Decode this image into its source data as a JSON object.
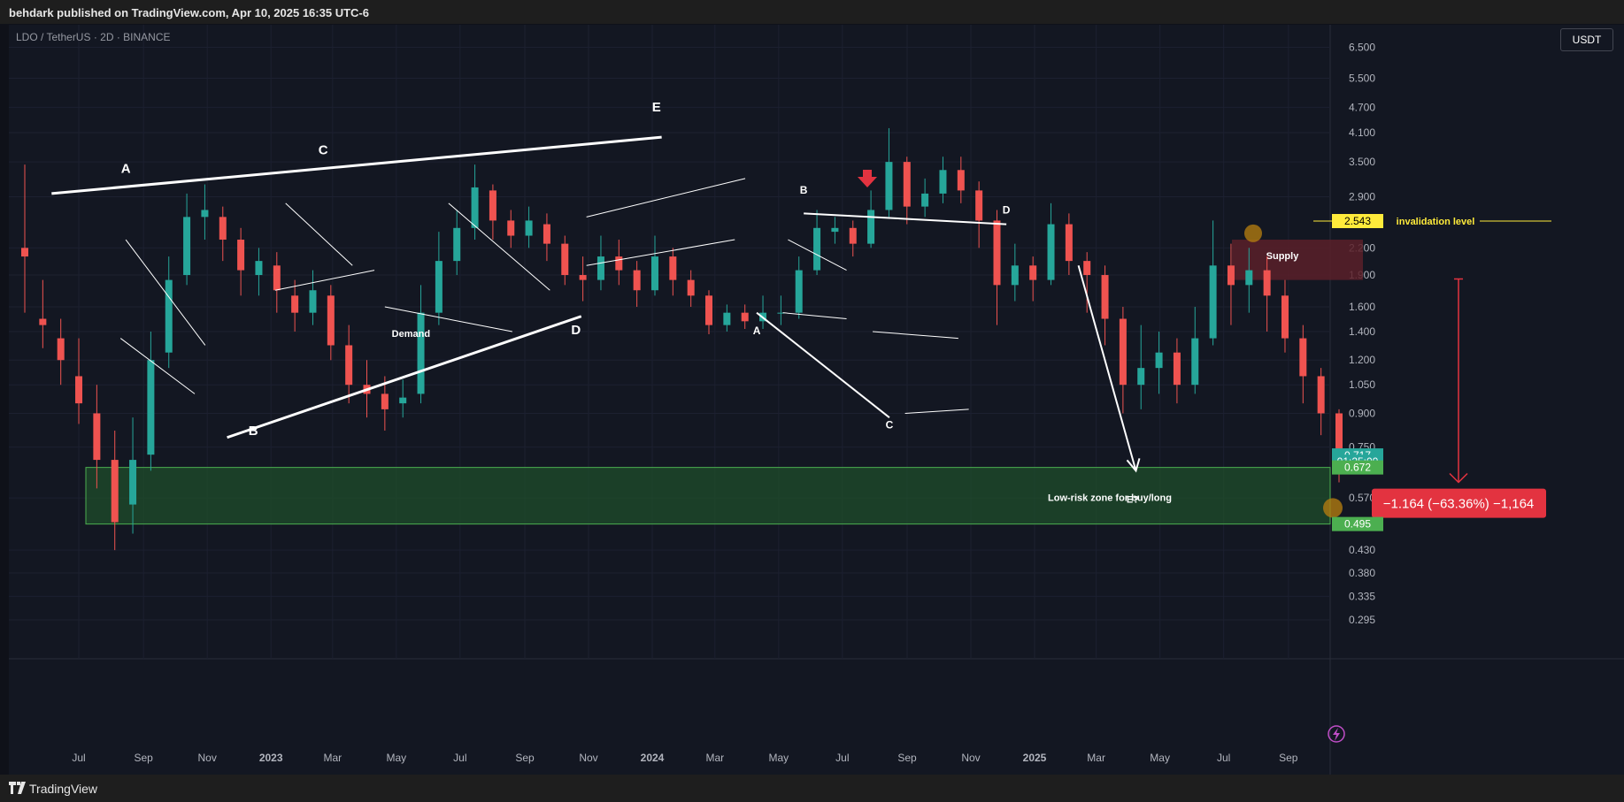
{
  "header": {
    "publish_text": "behdark published on TradingView.com, Apr 10, 2025 16:35 UTC-6"
  },
  "symbol": {
    "title": "LDO / TetherUS · 2D · BINANCE",
    "currency_button": "USDT"
  },
  "footer": {
    "brand": "TradingView"
  },
  "colors": {
    "background": "#131722",
    "up": "#26a69a",
    "down": "#ef5350",
    "zone": "#1f4d2b",
    "supply": "#5a2029",
    "label_red": "#e33340",
    "label_green": "#4caf50",
    "label_yellow": "#ffeb3b"
  },
  "chart_data": {
    "type": "candlestick",
    "title": "LDO / TetherUS · 2D · BINANCE",
    "y_axis_scale": "log",
    "y_ticks": [
      "6.500",
      "5.500",
      "4.700",
      "4.100",
      "3.500",
      "2.900",
      "2.200",
      "1.900",
      "1.600",
      "1.400",
      "1.200",
      "1.050",
      "0.900",
      "0.750",
      "0.570",
      "0.430",
      "0.380",
      "0.335",
      "0.295"
    ],
    "x_ticks": [
      "Jul",
      "Sep",
      "Nov",
      "2023",
      "Mar",
      "May",
      "Jul",
      "Sep",
      "Nov",
      "2024",
      "Mar",
      "May",
      "Jul",
      "Sep",
      "Nov",
      "2025",
      "Mar",
      "May",
      "Jul",
      "Sep"
    ],
    "price_labels": [
      {
        "text": "2.543",
        "value": 2.543,
        "color": "#ffeb3b",
        "text_color": "#000000"
      },
      {
        "text": "0.717",
        "value": 0.717,
        "color": "#26a69a",
        "text_color": "#ffffff"
      },
      {
        "text": "01:25:00",
        "value": 0.693,
        "color": "#26a69a",
        "text_color": "#ffffff"
      },
      {
        "text": "0.672",
        "value": 0.672,
        "color": "#4caf50",
        "text_color": "#ffffff"
      },
      {
        "text": "0.495",
        "value": 0.495,
        "color": "#4caf50",
        "text_color": "#ffffff"
      }
    ],
    "invalidation_level": {
      "label": "invalidation level",
      "value": 2.543
    },
    "zone": {
      "label": "Low-risk zone for buy/long",
      "top": 0.672,
      "bottom": 0.495
    },
    "supply": {
      "label": "Supply",
      "top": 2.3,
      "bottom": 1.85
    },
    "measure": {
      "label": "−1.164 (−63.36%) −1,164"
    },
    "wave_labels": [
      {
        "text": "A",
        "date": "2022-08-15",
        "value": 3.3
      },
      {
        "text": "B",
        "date": "2022-12-15",
        "value": 0.8
      },
      {
        "text": "C",
        "date": "2023-02-20",
        "value": 3.65
      },
      {
        "text": "D",
        "date": "2023-10-20",
        "value": 1.38
      },
      {
        "text": "E",
        "date": "2024-01-05",
        "value": 4.6
      },
      {
        "text": "A",
        "date": "2024-04-10",
        "value": 1.38
      },
      {
        "text": "B",
        "date": "2024-05-25",
        "value": 2.95
      },
      {
        "text": "C",
        "date": "2024-08-15",
        "value": 0.83
      },
      {
        "text": "D",
        "date": "2024-12-05",
        "value": 2.65
      },
      {
        "text": "E?",
        "date": "2025-04-05",
        "value": 0.555
      },
      {
        "text": "Demand",
        "date": "2023-05-15",
        "value": 1.36
      }
    ],
    "series": [
      {
        "name": "LDO/USDT",
        "ohlc": [
          [
            2.2,
            2.1,
            3.45,
            1.55
          ],
          [
            1.5,
            1.45,
            1.85,
            1.28
          ],
          [
            1.35,
            1.2,
            1.5,
            1.05
          ],
          [
            1.1,
            0.95,
            1.35,
            0.85
          ],
          [
            0.9,
            0.7,
            1.05,
            0.6
          ],
          [
            0.7,
            0.5,
            0.82,
            0.43
          ],
          [
            0.55,
            0.7,
            0.88,
            0.47
          ],
          [
            0.72,
            1.2,
            1.4,
            0.66
          ],
          [
            1.25,
            1.85,
            2.1,
            1.15
          ],
          [
            1.9,
            2.6,
            2.95,
            1.8
          ],
          [
            2.6,
            2.7,
            3.1,
            2.3
          ],
          [
            2.6,
            2.3,
            2.75,
            2.05
          ],
          [
            2.3,
            1.95,
            2.45,
            1.7
          ],
          [
            1.9,
            2.05,
            2.2,
            1.7
          ],
          [
            2.0,
            1.75,
            2.15,
            1.55
          ],
          [
            1.7,
            1.55,
            1.85,
            1.4
          ],
          [
            1.55,
            1.75,
            1.95,
            1.45
          ],
          [
            1.7,
            1.3,
            1.8,
            1.2
          ],
          [
            1.3,
            1.05,
            1.45,
            0.95
          ],
          [
            1.05,
            1.0,
            1.2,
            0.88
          ],
          [
            1.0,
            0.92,
            1.1,
            0.82
          ],
          [
            0.95,
            0.98,
            1.08,
            0.88
          ],
          [
            1.0,
            1.55,
            1.8,
            0.95
          ],
          [
            1.55,
            2.05,
            2.4,
            1.45
          ],
          [
            2.05,
            2.45,
            2.7,
            1.9
          ],
          [
            2.45,
            3.05,
            3.45,
            2.3
          ],
          [
            3.0,
            2.55,
            3.1,
            2.3
          ],
          [
            2.55,
            2.35,
            2.7,
            2.2
          ],
          [
            2.35,
            2.55,
            2.75,
            2.2
          ],
          [
            2.5,
            2.25,
            2.65,
            2.05
          ],
          [
            2.25,
            1.9,
            2.35,
            1.8
          ],
          [
            1.9,
            1.85,
            2.1,
            1.65
          ],
          [
            1.85,
            2.1,
            2.35,
            1.75
          ],
          [
            2.1,
            1.95,
            2.3,
            1.8
          ],
          [
            1.95,
            1.75,
            2.05,
            1.6
          ],
          [
            1.75,
            2.1,
            2.35,
            1.7
          ],
          [
            2.1,
            1.85,
            2.2,
            1.7
          ],
          [
            1.85,
            1.7,
            1.95,
            1.6
          ],
          [
            1.7,
            1.45,
            1.75,
            1.38
          ],
          [
            1.45,
            1.55,
            1.62,
            1.4
          ],
          [
            1.55,
            1.48,
            1.62,
            1.42
          ],
          [
            1.48,
            1.55,
            1.7,
            1.42
          ],
          [
            1.55,
            1.55,
            1.7,
            1.45
          ],
          [
            1.55,
            1.95,
            2.1,
            1.5
          ],
          [
            1.95,
            2.45,
            2.7,
            1.9
          ],
          [
            2.4,
            2.45,
            2.6,
            2.25
          ],
          [
            2.45,
            2.25,
            2.55,
            2.1
          ],
          [
            2.25,
            2.7,
            3.0,
            2.2
          ],
          [
            2.7,
            3.5,
            4.2,
            2.6
          ],
          [
            3.5,
            2.75,
            3.6,
            2.5
          ],
          [
            2.75,
            2.95,
            3.2,
            2.6
          ],
          [
            2.95,
            3.35,
            3.6,
            2.8
          ],
          [
            3.35,
            3.0,
            3.6,
            2.8
          ],
          [
            3.0,
            2.55,
            3.15,
            2.2
          ],
          [
            2.55,
            1.8,
            2.7,
            1.45
          ],
          [
            1.8,
            2.0,
            2.25,
            1.65
          ],
          [
            2.0,
            1.85,
            2.1,
            1.65
          ],
          [
            1.85,
            2.5,
            2.8,
            1.8
          ],
          [
            2.5,
            2.05,
            2.65,
            1.9
          ],
          [
            2.05,
            1.9,
            2.15,
            1.55
          ],
          [
            1.9,
            1.5,
            2.0,
            1.3
          ],
          [
            1.5,
            1.05,
            1.6,
            0.9
          ],
          [
            1.05,
            1.15,
            1.45,
            0.92
          ],
          [
            1.15,
            1.25,
            1.4,
            1.0
          ],
          [
            1.25,
            1.05,
            1.35,
            0.95
          ],
          [
            1.05,
            1.35,
            1.6,
            1.0
          ],
          [
            1.35,
            2.0,
            2.55,
            1.3
          ],
          [
            2.0,
            1.8,
            2.25,
            1.45
          ],
          [
            1.8,
            1.95,
            2.2,
            1.55
          ],
          [
            1.95,
            1.7,
            2.1,
            1.4
          ],
          [
            1.7,
            1.35,
            1.85,
            1.25
          ],
          [
            1.35,
            1.1,
            1.45,
            0.95
          ],
          [
            1.1,
            0.9,
            1.15,
            0.8
          ],
          [
            0.9,
            0.72,
            0.92,
            0.62
          ]
        ]
      }
    ]
  }
}
